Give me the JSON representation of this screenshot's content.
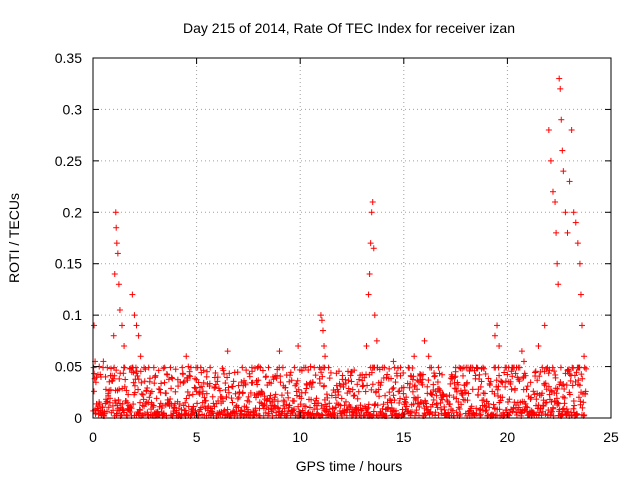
{
  "chart_data": {
    "type": "scatter",
    "title": "Day 215 of 2014, Rate Of TEC Index for receiver izan",
    "xlabel": "GPS time / hours",
    "ylabel": "ROTI / TECUs",
    "xlim": [
      0,
      25
    ],
    "ylim": [
      0,
      0.35
    ],
    "x_ticks": [
      0,
      5,
      10,
      15,
      20,
      25
    ],
    "x_tick_labels": [
      "0",
      "5",
      "10",
      "15",
      "20",
      "25"
    ],
    "y_ticks": [
      0,
      0.05,
      0.1,
      0.15,
      0.2,
      0.25,
      0.3,
      0.35
    ],
    "y_tick_labels": [
      "0",
      "0.05",
      "0.1",
      "0.15",
      "0.2",
      "0.25",
      "0.3",
      "0.35"
    ],
    "grid": true,
    "marker": "+",
    "series_color": "#ff0000",
    "series": [
      {
        "name": "ROTI",
        "points": [
          [
            0.05,
            0.09
          ],
          [
            0.1,
            0.055
          ],
          [
            0.3,
            0.05
          ],
          [
            0.5,
            0.055
          ],
          [
            1.0,
            0.08
          ],
          [
            1.05,
            0.14
          ],
          [
            1.1,
            0.2
          ],
          [
            1.12,
            0.185
          ],
          [
            1.15,
            0.17
          ],
          [
            1.2,
            0.16
          ],
          [
            1.25,
            0.13
          ],
          [
            1.3,
            0.105
          ],
          [
            1.4,
            0.09
          ],
          [
            1.5,
            0.07
          ],
          [
            1.9,
            0.12
          ],
          [
            2.0,
            0.1
          ],
          [
            2.1,
            0.09
          ],
          [
            2.2,
            0.08
          ],
          [
            2.3,
            0.06
          ],
          [
            3.0,
            0.04
          ],
          [
            4.5,
            0.06
          ],
          [
            4.6,
            0.05
          ],
          [
            5.5,
            0.045
          ],
          [
            6.5,
            0.065
          ],
          [
            8.0,
            0.05
          ],
          [
            9.0,
            0.065
          ],
          [
            9.9,
            0.07
          ],
          [
            10.5,
            0.05
          ],
          [
            11.0,
            0.1
          ],
          [
            11.05,
            0.095
          ],
          [
            11.1,
            0.085
          ],
          [
            11.15,
            0.07
          ],
          [
            11.2,
            0.06
          ],
          [
            12.5,
            0.045
          ],
          [
            13.2,
            0.07
          ],
          [
            13.3,
            0.12
          ],
          [
            13.35,
            0.14
          ],
          [
            13.4,
            0.17
          ],
          [
            13.45,
            0.2
          ],
          [
            13.5,
            0.21
          ],
          [
            13.55,
            0.165
          ],
          [
            13.6,
            0.1
          ],
          [
            13.7,
            0.075
          ],
          [
            14.5,
            0.055
          ],
          [
            15.5,
            0.06
          ],
          [
            16.0,
            0.075
          ],
          [
            16.2,
            0.06
          ],
          [
            17.5,
            0.045
          ],
          [
            19.4,
            0.08
          ],
          [
            19.5,
            0.09
          ],
          [
            19.6,
            0.07
          ],
          [
            20.7,
            0.065
          ],
          [
            20.8,
            0.055
          ],
          [
            21.5,
            0.07
          ],
          [
            21.8,
            0.09
          ],
          [
            22.0,
            0.28
          ],
          [
            22.1,
            0.25
          ],
          [
            22.2,
            0.22
          ],
          [
            22.3,
            0.21
          ],
          [
            22.35,
            0.18
          ],
          [
            22.4,
            0.15
          ],
          [
            22.45,
            0.13
          ],
          [
            22.5,
            0.33
          ],
          [
            22.55,
            0.32
          ],
          [
            22.6,
            0.29
          ],
          [
            22.65,
            0.26
          ],
          [
            22.7,
            0.24
          ],
          [
            22.8,
            0.2
          ],
          [
            22.9,
            0.18
          ],
          [
            23.0,
            0.23
          ],
          [
            23.1,
            0.28
          ],
          [
            23.2,
            0.2
          ],
          [
            23.3,
            0.19
          ],
          [
            23.4,
            0.17
          ],
          [
            23.5,
            0.15
          ],
          [
            23.55,
            0.12
          ],
          [
            23.6,
            0.09
          ],
          [
            23.7,
            0.06
          ]
        ],
        "baseline_band": {
          "x_start": 0,
          "x_end": 23.8,
          "y_min": 0.002,
          "y_max": 0.035
        }
      }
    ]
  }
}
